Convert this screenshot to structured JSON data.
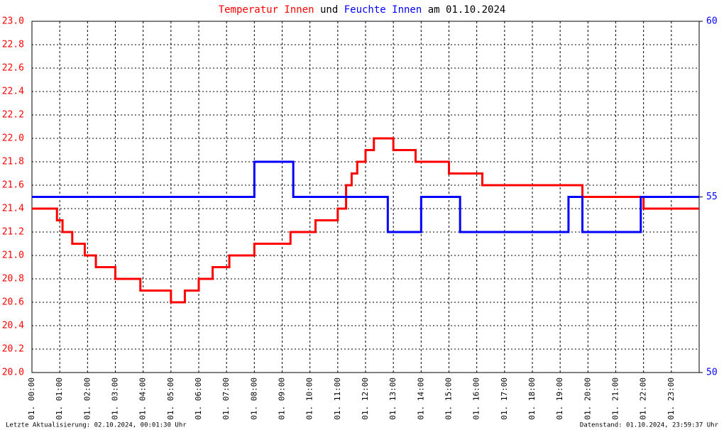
{
  "chart_data": {
    "type": "line",
    "title_connector": "und",
    "title_suffix": "am 01.10.2024",
    "footer_left": "Letzte Aktualisierung: 02.10.2024, 00:01:30 Uhr",
    "footer_right": "Datenstand: 01.10.2024, 23:59:37 Uhr",
    "xlim": [
      0,
      24
    ],
    "xticks": [
      {
        "value": 0,
        "label": "01. 00:00"
      },
      {
        "value": 1,
        "label": "01. 01:00"
      },
      {
        "value": 2,
        "label": "01. 02:00"
      },
      {
        "value": 3,
        "label": "01. 03:00"
      },
      {
        "value": 4,
        "label": "01. 04:00"
      },
      {
        "value": 5,
        "label": "01. 05:00"
      },
      {
        "value": 6,
        "label": "01. 06:00"
      },
      {
        "value": 7,
        "label": "01. 07:00"
      },
      {
        "value": 8,
        "label": "01. 08:00"
      },
      {
        "value": 9,
        "label": "01. 09:00"
      },
      {
        "value": 10,
        "label": "01. 10:00"
      },
      {
        "value": 11,
        "label": "01. 11:00"
      },
      {
        "value": 12,
        "label": "01. 12:00"
      },
      {
        "value": 13,
        "label": "01. 13:00"
      },
      {
        "value": 14,
        "label": "01. 14:00"
      },
      {
        "value": 15,
        "label": "01. 15:00"
      },
      {
        "value": 16,
        "label": "01. 16:00"
      },
      {
        "value": 17,
        "label": "01. 17:00"
      },
      {
        "value": 18,
        "label": "01. 18:00"
      },
      {
        "value": 19,
        "label": "01. 19:00"
      },
      {
        "value": 20,
        "label": "01. 20:00"
      },
      {
        "value": 21,
        "label": "01. 21:00"
      },
      {
        "value": 22,
        "label": "01. 22:00"
      },
      {
        "value": 23,
        "label": "01. 23:00"
      }
    ],
    "ylim": [
      20,
      23
    ],
    "yticks": [
      {
        "value": 20,
        "label": "20.0"
      },
      20.2,
      20.4,
      20.6,
      20.8,
      {
        "value": 21,
        "label": "21.0"
      },
      21.2,
      21.4,
      21.6,
      21.8,
      {
        "value": 22,
        "label": "22.0"
      },
      22.2,
      22.4,
      22.6,
      22.8,
      {
        "value": 23,
        "label": "23.0"
      }
    ],
    "y2lim": [
      50,
      60
    ],
    "y2ticks": [
      50,
      55,
      60
    ],
    "grid": true,
    "series": [
      {
        "name": "Temperatur Innen",
        "color": "#ff0000",
        "x": [
          0,
          0.9,
          0.9,
          1.1,
          1.1,
          1.45,
          1.45,
          1.9,
          1.9,
          2.3,
          2.3,
          3.0,
          3.0,
          3.9,
          3.9,
          5.0,
          5.0,
          5.5,
          5.5,
          6.0,
          6.0,
          6.5,
          6.5,
          7.1,
          7.1,
          8.0,
          8.0,
          9.3,
          9.3,
          10.2,
          10.2,
          11.0,
          11.0,
          11.3,
          11.3,
          11.5,
          11.5,
          11.7,
          11.7,
          12.0,
          12.0,
          12.3,
          12.3,
          13.0,
          13.0,
          13.8,
          13.8,
          15.0,
          15.0,
          16.2,
          16.2,
          19.8,
          19.8,
          22.0,
          22.0,
          24
        ],
        "values": [
          21.4,
          21.4,
          21.3,
          21.3,
          21.2,
          21.2,
          21.1,
          21.1,
          21.0,
          21.0,
          20.9,
          20.9,
          20.8,
          20.8,
          20.7,
          20.7,
          20.6,
          20.6,
          20.7,
          20.7,
          20.8,
          20.8,
          20.9,
          20.9,
          21.0,
          21.0,
          21.1,
          21.1,
          21.2,
          21.2,
          21.3,
          21.3,
          21.4,
          21.4,
          21.6,
          21.6,
          21.7,
          21.7,
          21.8,
          21.8,
          21.9,
          21.9,
          22.0,
          22.0,
          21.9,
          21.9,
          21.8,
          21.8,
          21.7,
          21.7,
          21.6,
          21.6,
          21.5,
          21.5,
          21.4,
          21.4
        ]
      },
      {
        "name": "Feuchte Innen",
        "color": "#0000ff",
        "axis": "y2",
        "x": [
          0,
          8.0,
          8.0,
          9.4,
          9.4,
          12.8,
          12.8,
          14.0,
          14.0,
          15.4,
          15.4,
          19.3,
          19.3,
          19.8,
          19.8,
          21.9,
          21.9,
          24
        ],
        "values": [
          55,
          55,
          56,
          56,
          55,
          55,
          54,
          54,
          55,
          55,
          54,
          54,
          55,
          55,
          54,
          54,
          55,
          55
        ]
      }
    ]
  }
}
